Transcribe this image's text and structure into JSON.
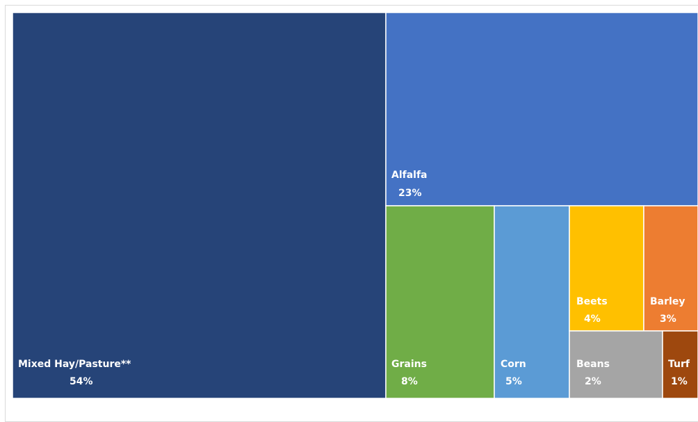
{
  "chart_data": {
    "type": "treemap",
    "title": "",
    "items": [
      {
        "name": "Mixed Hay/Pasture**",
        "value": 54,
        "label": "54%",
        "color": "#264478"
      },
      {
        "name": "Alfalfa",
        "value": 23,
        "label": "23%",
        "color": "#4472C4"
      },
      {
        "name": "Grains",
        "value": 8,
        "label": "8%",
        "color": "#70AD47"
      },
      {
        "name": "Corn",
        "value": 5,
        "label": "5%",
        "color": "#5B9BD5"
      },
      {
        "name": "Beets",
        "value": 4,
        "label": "4%",
        "color": "#FFC000"
      },
      {
        "name": "Barley",
        "value": 3,
        "label": "3%",
        "color": "#ED7D31"
      },
      {
        "name": "Beans",
        "value": 2,
        "label": "2%",
        "color": "#A5A5A5"
      },
      {
        "name": "Turf",
        "value": 1,
        "label": "1%",
        "color": "#9E480E"
      }
    ]
  }
}
